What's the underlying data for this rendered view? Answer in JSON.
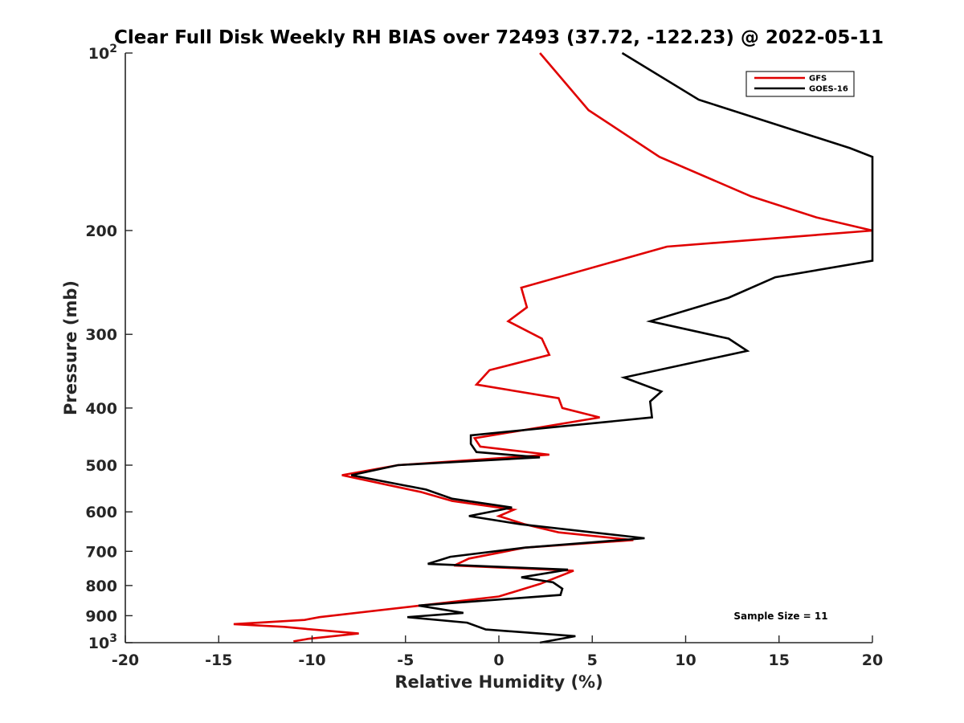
{
  "chart_data": {
    "type": "line",
    "title": "Clear Full Disk Weekly RH BIAS over 72493 (37.72, -122.23) @ 2022-05-11",
    "xlabel": "Relative Humidity (%)",
    "ylabel": "Pressure (mb)",
    "xlim": [
      -20,
      20
    ],
    "ylim": [
      100,
      1000
    ],
    "yscale": "log",
    "y_reversed": true,
    "grid": false,
    "legend_position": "top-right",
    "annotation": "Sample Size = 11",
    "x_ticks": [
      {
        "value": -20,
        "label": "-20"
      },
      {
        "value": -15,
        "label": "-15"
      },
      {
        "value": -10,
        "label": "-10"
      },
      {
        "value": -5,
        "label": "-5"
      },
      {
        "value": 0,
        "label": "0"
      },
      {
        "value": 5,
        "label": "5"
      },
      {
        "value": 10,
        "label": "10"
      },
      {
        "value": 15,
        "label": "15"
      },
      {
        "value": 20,
        "label": "20"
      }
    ],
    "y_ticks": [
      {
        "value": 100,
        "label": "10",
        "sup": "2"
      },
      {
        "value": 200,
        "label": "200"
      },
      {
        "value": 300,
        "label": "300"
      },
      {
        "value": 400,
        "label": "400"
      },
      {
        "value": 500,
        "label": "500"
      },
      {
        "value": 600,
        "label": "600"
      },
      {
        "value": 700,
        "label": "700"
      },
      {
        "value": 800,
        "label": "800"
      },
      {
        "value": 900,
        "label": "900"
      },
      {
        "value": 1000,
        "label": "10",
        "sup": "3"
      }
    ],
    "series": [
      {
        "name": "GFS",
        "color": "#e00000",
        "points": [
          [
            2.2,
            100
          ],
          [
            4.8,
            125
          ],
          [
            8.6,
            150
          ],
          [
            13.5,
            175
          ],
          [
            17,
            190
          ],
          [
            20,
            200
          ],
          [
            9,
            213
          ],
          [
            1.2,
            250
          ],
          [
            1.5,
            270
          ],
          [
            0.5,
            285
          ],
          [
            2.3,
            305
          ],
          [
            2.7,
            325
          ],
          [
            -0.5,
            345
          ],
          [
            -1.2,
            365
          ],
          [
            3.2,
            385
          ],
          [
            3.4,
            400
          ],
          [
            5.4,
            415
          ],
          [
            -1.3,
            450
          ],
          [
            -1.0,
            465
          ],
          [
            2.7,
            480
          ],
          [
            -5.4,
            500
          ],
          [
            -8.4,
            520
          ],
          [
            -4.2,
            555
          ],
          [
            -2.5,
            575
          ],
          [
            0.8,
            595
          ],
          [
            0,
            610
          ],
          [
            1.4,
            630
          ],
          [
            3.2,
            650
          ],
          [
            7.2,
            670
          ],
          [
            1.4,
            690
          ],
          [
            -1.6,
            720
          ],
          [
            -2.4,
            740
          ],
          [
            4.0,
            755
          ],
          [
            2.2,
            795
          ],
          [
            0,
            835
          ],
          [
            -9.6,
            905
          ],
          [
            -10.4,
            915
          ],
          [
            -14.2,
            930
          ],
          [
            -11.5,
            940
          ],
          [
            -10,
            950
          ],
          [
            -7.5,
            965
          ],
          [
            -10.2,
            985
          ],
          [
            -11,
            995
          ]
        ]
      },
      {
        "name": "GOES-16",
        "color": "#000000",
        "points": [
          [
            6.6,
            100
          ],
          [
            10.7,
            120
          ],
          [
            18.8,
            145
          ],
          [
            20,
            150
          ],
          [
            20,
            225
          ],
          [
            14.8,
            240
          ],
          [
            12.3,
            260
          ],
          [
            8.1,
            285
          ],
          [
            12.3,
            305
          ],
          [
            13.3,
            320
          ],
          [
            6.7,
            355
          ],
          [
            8.7,
            375
          ],
          [
            8.1,
            390
          ],
          [
            8.2,
            415
          ],
          [
            -1.5,
            445
          ],
          [
            -1.5,
            460
          ],
          [
            -1.2,
            475
          ],
          [
            2.2,
            485
          ],
          [
            -5.4,
            500
          ],
          [
            -7.9,
            520
          ],
          [
            -3.9,
            550
          ],
          [
            -2.5,
            570
          ],
          [
            0.7,
            590
          ],
          [
            -1.6,
            610
          ],
          [
            1.2,
            630
          ],
          [
            7.8,
            665
          ],
          [
            1.4,
            690
          ],
          [
            -2.6,
            715
          ],
          [
            -3.8,
            735
          ],
          [
            3.7,
            752
          ],
          [
            1.2,
            775
          ],
          [
            2.9,
            790
          ],
          [
            3.4,
            810
          ],
          [
            3.3,
            830
          ],
          [
            -4.3,
            865
          ],
          [
            -1.9,
            890
          ],
          [
            -4.9,
            905
          ],
          [
            -1.7,
            925
          ],
          [
            -0.7,
            950
          ],
          [
            4.1,
            975
          ],
          [
            2.2,
            1000
          ]
        ]
      }
    ]
  }
}
